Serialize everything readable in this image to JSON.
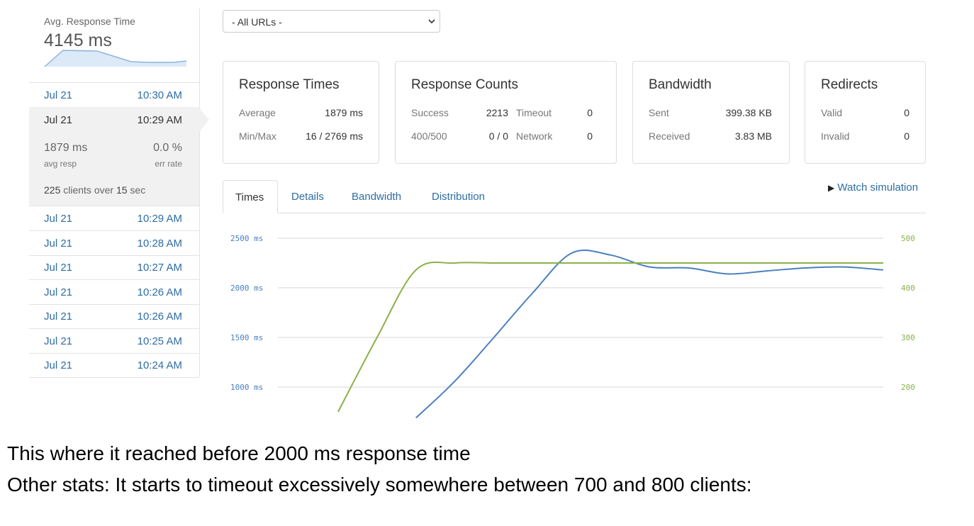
{
  "sidebar": {
    "title": "Avg. Response Time",
    "avg_value": "4145 ms",
    "runs": [
      {
        "date": "Jul 21",
        "time": "10:30 AM"
      },
      {
        "date": "Jul 21",
        "time": "10:29 AM"
      },
      {
        "date": "Jul 21",
        "time": "10:29 AM"
      },
      {
        "date": "Jul 21",
        "time": "10:28 AM"
      },
      {
        "date": "Jul 21",
        "time": "10:27 AM"
      },
      {
        "date": "Jul 21",
        "time": "10:26 AM"
      },
      {
        "date": "Jul 21",
        "time": "10:26 AM"
      },
      {
        "date": "Jul 21",
        "time": "10:25 AM"
      },
      {
        "date": "Jul 21",
        "time": "10:24 AM"
      }
    ],
    "selected": {
      "avg_resp": "1879 ms",
      "avg_resp_label": "avg resp",
      "err_rate": "0.0 %",
      "err_rate_label": "err rate",
      "clients_prefix": "225",
      "clients_mid": " clients over ",
      "clients_sec": "15",
      "clients_suffix": " sec"
    }
  },
  "url_select": {
    "value": "- All URLs -"
  },
  "cards": {
    "response_times": {
      "title": "Response Times",
      "average_label": "Average",
      "average_value": "1879 ms",
      "minmax_label": "Min/Max",
      "minmax_value": "16 / 2769 ms"
    },
    "response_counts": {
      "title": "Response Counts",
      "success_label": "Success",
      "success_value": "2213",
      "timeout_label": "Timeout",
      "timeout_value": "0",
      "errors_label": "400/500",
      "errors_value": "0 / 0",
      "network_label": "Network",
      "network_value": "0"
    },
    "bandwidth": {
      "title": "Bandwidth",
      "sent_label": "Sent",
      "sent_value": "399.38 KB",
      "received_label": "Received",
      "received_value": "3.83 MB"
    },
    "redirects": {
      "title": "Redirects",
      "valid_label": "Valid",
      "valid_value": "0",
      "invalid_label": "Invalid",
      "invalid_value": "0"
    }
  },
  "tabs": [
    "Times",
    "Details",
    "Bandwidth",
    "Distribution"
  ],
  "watch_simulation": "Watch simulation",
  "colors": {
    "link": "#2e6da4",
    "response_line": "#4a7fbf",
    "clients_line": "#8ab04a"
  },
  "chart_data": {
    "type": "line",
    "title": "",
    "xlabel": "",
    "ylabel": "",
    "y_left_ticks": [
      "2500 ms",
      "2000 ms",
      "1500 ms",
      "1000 ms"
    ],
    "y_right_ticks": [
      "500",
      "400",
      "300",
      "200"
    ],
    "y_left_range": [
      1000,
      2500
    ],
    "y_right_range": [
      200,
      500
    ],
    "grid": true,
    "x": [
      0,
      1,
      2,
      3,
      4,
      5,
      6,
      7,
      8,
      9,
      10,
      11,
      12,
      13,
      14,
      15
    ],
    "series": [
      {
        "axis": "left",
        "values": [
          null,
          null,
          null,
          690,
          1060,
          1500,
          1950,
          2350,
          2330,
          2210,
          2200,
          2140,
          2170,
          2200,
          2210,
          2180
        ]
      },
      {
        "axis": "right",
        "values": [
          null,
          150,
          300,
          436,
          450,
          450,
          450,
          450,
          450,
          450,
          450,
          450,
          450,
          450,
          450,
          450
        ]
      }
    ]
  },
  "notes": [
    "This where it reached before 2000 ms response time",
    "Other stats: It starts to timeout excessively somewhere between 700 and 800 clients:"
  ]
}
